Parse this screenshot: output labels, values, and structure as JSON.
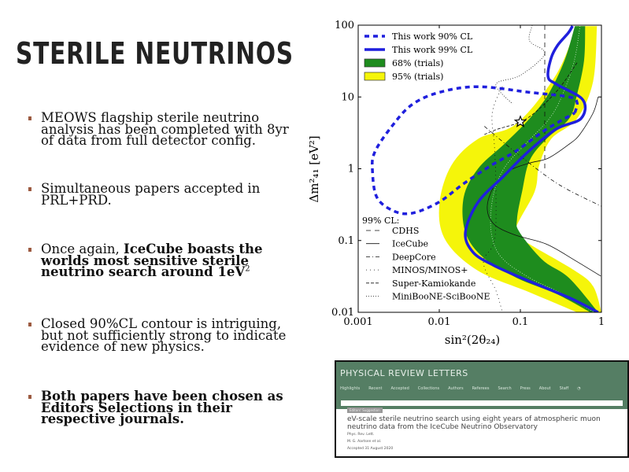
{
  "slide": {
    "title": "STERILE NEUTRINOS",
    "bullets": [
      {
        "plain": "MEOWS flagship sterile neutrino analysis has been completed with 8yr of data from full detector config."
      },
      {
        "plain": "Simultaneous papers accepted in PRL+PRD."
      },
      {
        "plain": "Once again, ",
        "bold": "IceCube boasts the worlds most sensitive sterile neutrino search around 1eV",
        "sup": "2"
      },
      {
        "plain": "Closed 90%CL contour is intriguing, but not sufficiently strong to indicate evidence of new physics."
      },
      {
        "bold": "Both papers have been chosen as Editors Selections in their respective journals."
      }
    ],
    "bullet_color": "#9c5a40"
  },
  "chart_data": {
    "type": "contour",
    "xlabel": "sin²(2θ₂₄)",
    "ylabel": "Δm²₄₁ [eV²]",
    "xscale": "log",
    "yscale": "log",
    "xlim": [
      0.001,
      1
    ],
    "ylim": [
      0.01,
      100
    ],
    "xticks": [
      "0.001",
      "0.01",
      "0.1",
      "1"
    ],
    "yticks": [
      "0.01",
      "0.1",
      "1",
      "10",
      "100"
    ],
    "legend": {
      "placement": "top-left",
      "entries": [
        {
          "label": "This work 90% CL",
          "style": "dashed",
          "color": "#1f1fdd"
        },
        {
          "label": "This work 99% CL",
          "style": "solid",
          "color": "#1f1fdd"
        },
        {
          "label": "68% (trials)",
          "style": "fill",
          "color": "#1e8c1e"
        },
        {
          "label": "95% (trials)",
          "style": "fill",
          "color": "#f5f50a"
        }
      ]
    },
    "legend2": {
      "placement": "bottom-left",
      "title": "99% CL:",
      "entries": [
        {
          "label": "CDHS",
          "dash": "6,5"
        },
        {
          "label": "IceCube",
          "dash": ""
        },
        {
          "label": "DeepCore",
          "dash": "5,3,1,3"
        },
        {
          "label": "MINOS/MINOS+",
          "dash": "1,4"
        },
        {
          "label": "Super-Kamiokande",
          "dash": "4,2"
        },
        {
          "label": "MiniBooNE-SciBooNE",
          "dash": "1,2"
        }
      ]
    },
    "band_95": {
      "left": [
        [
          0.49,
          97
        ],
        [
          0.28,
          21
        ],
        [
          0.091,
          4.3
        ],
        [
          0.03,
          2.6
        ],
        [
          0.014,
          1.1
        ],
        [
          0.01,
          0.31
        ],
        [
          0.012,
          0.1
        ],
        [
          0.03,
          0.038
        ],
        [
          0.13,
          0.019
        ],
        [
          0.5,
          0.01
        ]
      ],
      "right": [
        [
          0.88,
          97
        ],
        [
          0.79,
          16.5
        ],
        [
          0.5,
          5.0
        ],
        [
          0.24,
          2.6
        ],
        [
          0.17,
          1.1
        ],
        [
          0.15,
          0.48
        ],
        [
          0.085,
          0.13
        ],
        [
          0.13,
          0.089
        ],
        [
          0.47,
          0.038
        ],
        [
          0.79,
          0.023
        ],
        [
          1.0,
          0.01
        ]
      ]
    },
    "band_68": {
      "left": [
        [
          0.47,
          97
        ],
        [
          0.35,
          32
        ],
        [
          0.22,
          10.8
        ],
        [
          0.13,
          5.0
        ],
        [
          0.063,
          2.2
        ],
        [
          0.03,
          1.0
        ],
        [
          0.02,
          0.4
        ],
        [
          0.021,
          0.13
        ],
        [
          0.035,
          0.058
        ],
        [
          0.091,
          0.03
        ],
        [
          0.28,
          0.018
        ],
        [
          0.73,
          0.01
        ]
      ],
      "right": [
        [
          0.63,
          97
        ],
        [
          0.61,
          32
        ],
        [
          0.5,
          10.8
        ],
        [
          0.4,
          5.0
        ],
        [
          0.21,
          2.6
        ],
        [
          0.13,
          1.3
        ],
        [
          0.105,
          0.48
        ],
        [
          0.091,
          0.2
        ],
        [
          0.098,
          0.13
        ],
        [
          0.19,
          0.053
        ],
        [
          0.4,
          0.03
        ],
        [
          0.91,
          0.01
        ]
      ]
    },
    "contour_90": [
      [
        0.47,
        6.0
      ],
      [
        0.5,
        8.4
      ],
      [
        0.4,
        10
      ],
      [
        0.13,
        11.6
      ],
      [
        0.03,
        13.9
      ],
      [
        0.01,
        11.6
      ],
      [
        0.0046,
        7.8
      ],
      [
        0.0026,
        3.9
      ],
      [
        0.0016,
        1.7
      ],
      [
        0.0015,
        0.93
      ],
      [
        0.0017,
        0.4
      ],
      [
        0.0027,
        0.26
      ],
      [
        0.0046,
        0.24
      ],
      [
        0.0098,
        0.34
      ],
      [
        0.02,
        0.62
      ],
      [
        0.043,
        1.1
      ],
      [
        0.091,
        1.8
      ],
      [
        0.19,
        3.3
      ],
      [
        0.32,
        4.7
      ],
      [
        0.47,
        6.0
      ]
    ],
    "contour_99": [
      [
        0.44,
        97.5
      ],
      [
        0.39,
        78
      ],
      [
        0.29,
        53
      ],
      [
        0.24,
        35
      ],
      [
        0.22,
        19
      ],
      [
        0.28,
        15
      ],
      [
        0.59,
        9.1
      ],
      [
        0.56,
        5.0
      ],
      [
        0.28,
        3.6
      ],
      [
        0.13,
        1.8
      ],
      [
        0.063,
        0.8
      ],
      [
        0.03,
        0.34
      ],
      [
        0.021,
        0.13
      ],
      [
        0.026,
        0.069
      ],
      [
        0.047,
        0.045
      ],
      [
        0.13,
        0.027
      ],
      [
        0.4,
        0.016
      ],
      [
        0.91,
        0.01
      ]
    ],
    "icecube_prev": [
      [
        0.91,
        10
      ],
      [
        0.79,
        6.0
      ],
      [
        0.54,
        3.0
      ],
      [
        0.4,
        2.2
      ],
      [
        0.22,
        1.4
      ],
      [
        0.13,
        1.2
      ],
      [
        0.072,
        0.93
      ],
      [
        0.047,
        0.56
      ],
      [
        0.039,
        0.29
      ],
      [
        0.047,
        0.17
      ],
      [
        0.085,
        0.12
      ],
      [
        0.21,
        0.089
      ],
      [
        0.47,
        0.053
      ],
      [
        0.98,
        0.032
      ]
    ],
    "cdhs": [
      [
        0.2,
        100
      ],
      [
        0.2,
        1.0
      ]
    ],
    "deepcore": [
      [
        0.036,
        3.9
      ],
      [
        0.1,
        1.5
      ],
      [
        0.3,
        0.6
      ],
      [
        1.0,
        0.3
      ]
    ],
    "minos": [
      [
        0.06,
        14
      ],
      [
        0.045,
        6
      ],
      [
        0.048,
        2.0
      ],
      [
        0.05,
        0.5
      ],
      [
        0.048,
        0.1
      ],
      [
        0.035,
        0.05
      ],
      [
        0.05,
        0.02
      ],
      [
        0.06,
        0.01
      ]
    ],
    "superk": [
      [
        0.5,
        30
      ],
      [
        0.28,
        12
      ],
      [
        0.12,
        5
      ],
      [
        0.05,
        3.5
      ],
      [
        0.036,
        3.0
      ]
    ],
    "miniboone": [
      [
        0.14,
        100
      ],
      [
        0.13,
        60
      ],
      [
        0.2,
        40
      ],
      [
        0.1,
        20
      ],
      [
        0.05,
        15
      ],
      [
        0.08,
        8
      ]
    ],
    "best_fit": [
      0.1,
      4.5
    ],
    "colors": {
      "blue": "#1f1fdd",
      "green": "#1e8c1e",
      "yellow": "#f5f50a"
    }
  },
  "prl": {
    "journal": "PHYSICAL REVIEW LETTERS",
    "nav": [
      "Highlights",
      "Recent",
      "Accepted",
      "Collections",
      "Authors",
      "Referees",
      "Search",
      "Press",
      "About",
      "Staff",
      "RSS"
    ],
    "badge": "Editors' Suggestion",
    "paper_title": "eV-scale sterile neutrino search using eight years of atmospheric muon neutrino data from the IceCube Neutrino Observatory",
    "journal_abbrev": "Phys. Rev. Lett.",
    "authors": "M. G. Aartsen et al.",
    "accepted": "Accepted 31 August 2020",
    "header_color": "#557e64"
  }
}
